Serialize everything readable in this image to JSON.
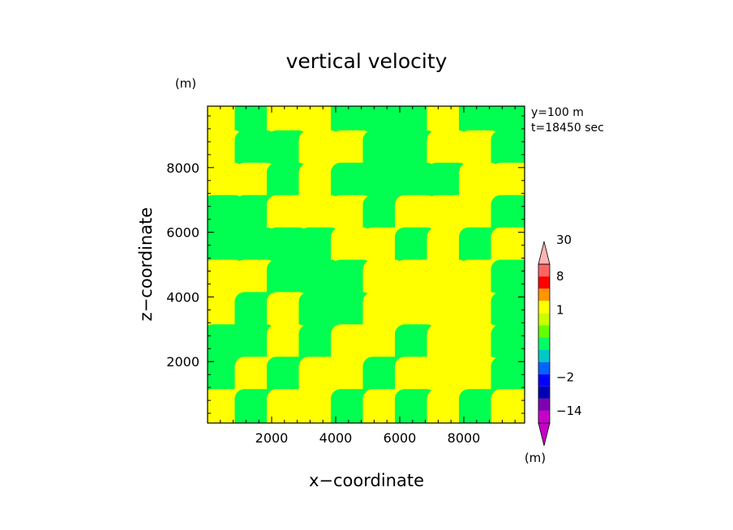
{
  "chart_data": {
    "type": "heatmap",
    "title": "vertical velocity",
    "xlabel": "x−coordinate",
    "ylabel": "z−coordinate",
    "x_unit": "(m)",
    "y_unit": "(m)",
    "colorbar_unit": "(m)",
    "annotations": [
      "y=100 m",
      "t=18450 sec"
    ],
    "xlim": [
      0,
      9900
    ],
    "ylim": [
      100,
      9900
    ],
    "x_ticks": [
      2000,
      4000,
      6000,
      8000
    ],
    "y_ticks": [
      2000,
      4000,
      6000,
      8000
    ],
    "x_tick_labels": [
      "2000",
      "4000",
      "6000",
      "8000"
    ],
    "y_tick_labels": [
      "2000",
      "4000",
      "6000",
      "8000"
    ],
    "colorbar": {
      "levels": [
        -30,
        -20,
        -14,
        -8,
        -4,
        -2,
        -1,
        -0.5,
        0,
        0.5,
        1,
        2,
        4,
        8,
        14,
        20,
        30
      ],
      "labels": [
        {
          "value": 30,
          "text": "30"
        },
        {
          "value": 8,
          "text": "8"
        },
        {
          "value": 1,
          "text": "1"
        },
        {
          "value": -2,
          "text": "−2"
        },
        {
          "value": -14,
          "text": "−14"
        }
      ],
      "colors": [
        "#c800c8",
        "#c800c8",
        "#8000b4",
        "#0000b4",
        "#0000ff",
        "#0064ff",
        "#00c8c8",
        "#00ff64",
        "#64ff00",
        "#c8ff00",
        "#ffff00",
        "#ff9600",
        "#ff0000",
        "#ff6464",
        "#ffb4b4"
      ]
    },
    "field_colors": {
      "positive_small": "#ffff00",
      "negative_small": "#00ff50"
    },
    "field_grid": {
      "x": [
        0,
        1000,
        2000,
        3000,
        4000,
        5000,
        6000,
        7000,
        8000,
        9000
      ],
      "y": [
        9500,
        8500,
        7500,
        6500,
        5500,
        4500,
        3500,
        2500,
        1500,
        500
      ],
      "sign": [
        [
          1,
          -1,
          1,
          1,
          -1,
          -1,
          -1,
          1,
          -1,
          -1
        ],
        [
          1,
          -1,
          -1,
          1,
          1,
          -1,
          -1,
          1,
          1,
          -1
        ],
        [
          1,
          1,
          -1,
          1,
          -1,
          -1,
          -1,
          -1,
          1,
          1
        ],
        [
          -1,
          -1,
          1,
          1,
          1,
          -1,
          1,
          1,
          1,
          -1
        ],
        [
          -1,
          -1,
          -1,
          -1,
          1,
          1,
          -1,
          1,
          -1,
          1
        ],
        [
          1,
          1,
          -1,
          -1,
          -1,
          1,
          1,
          1,
          1,
          -1
        ],
        [
          1,
          -1,
          1,
          -1,
          -1,
          1,
          1,
          1,
          1,
          -1
        ],
        [
          -1,
          -1,
          1,
          -1,
          1,
          1,
          -1,
          1,
          1,
          -1
        ],
        [
          -1,
          1,
          -1,
          1,
          1,
          -1,
          1,
          1,
          1,
          -1
        ],
        [
          1,
          -1,
          1,
          1,
          -1,
          1,
          -1,
          1,
          -1,
          1
        ]
      ]
    }
  }
}
